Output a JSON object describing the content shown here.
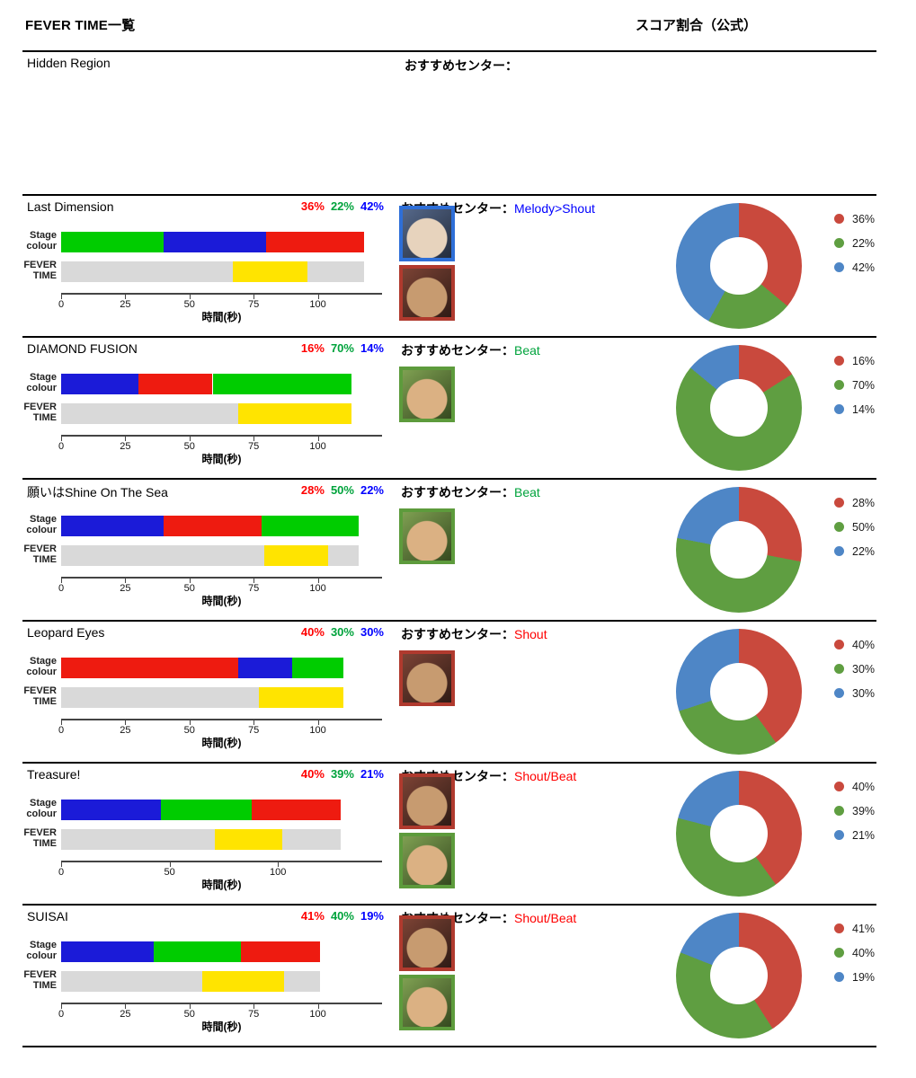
{
  "header": {
    "title": "FEVER TIME一覧",
    "right_title": "スコア割合（公式）"
  },
  "hidden": {
    "title": "Hidden Region"
  },
  "labels": {
    "recommend_prefix": "おすすめセンター：",
    "stage_colour": [
      "Stage",
      "colour"
    ],
    "fever_time": [
      "FEVER",
      "TIME"
    ],
    "axis_title": "時間(秒)"
  },
  "colors": {
    "bar_red": "#ee1b10",
    "bar_green": "#00cc00",
    "bar_blue": "#1b1bd8",
    "bar_yellow": "#ffe400",
    "bar_grey": "#d9d9d9",
    "donut_red": "#c9493d",
    "donut_green": "#5f9e41",
    "donut_blue": "#4e86c6",
    "text_red": "#ff0000",
    "text_green": "#00a33c",
    "text_blue": "#0000ff",
    "avatar_red": "#b03a2e",
    "avatar_green": "#5d9b3c",
    "avatar_blue": "#2e6fd8"
  },
  "chart_data": [
    {
      "type": "timeline+donut",
      "song": "Last Dimension",
      "recommended_center": {
        "label": "Melody>Shout",
        "color": "blue"
      },
      "axis": {
        "max": 125,
        "ticks": [
          0,
          25,
          50,
          75,
          100
        ]
      },
      "total_seconds": 118,
      "stage_colour_segments": [
        {
          "color": "green",
          "start": 0,
          "end": 40
        },
        {
          "color": "blue",
          "start": 40,
          "end": 80
        },
        {
          "color": "red",
          "start": 80,
          "end": 118
        }
      ],
      "fever_time": {
        "start": 67,
        "end": 96
      },
      "score_ratio": [
        {
          "color": "red",
          "value": 36,
          "label": "36%"
        },
        {
          "color": "green",
          "value": 22,
          "label": "22%"
        },
        {
          "color": "blue",
          "value": 42,
          "label": "42%"
        }
      ],
      "avatars": [
        {
          "name": "melody-center-avatar",
          "border": "blue",
          "bg1": "#55688a",
          "bg2": "#242c3c",
          "face": "#e7d3bd"
        },
        {
          "name": "shout-center-avatar",
          "border": "red",
          "bg1": "#7c4335",
          "bg2": "#2f1b15",
          "face": "#c79b70"
        }
      ]
    },
    {
      "type": "timeline+donut",
      "song": "DIAMOND FUSION",
      "recommended_center": {
        "label": "Beat",
        "color": "green"
      },
      "axis": {
        "max": 125,
        "ticks": [
          0,
          25,
          50,
          75,
          100
        ]
      },
      "total_seconds": 113,
      "stage_colour_segments": [
        {
          "color": "blue",
          "start": 0,
          "end": 30
        },
        {
          "color": "red",
          "start": 30,
          "end": 59
        },
        {
          "color": "green",
          "start": 59,
          "end": 113
        }
      ],
      "fever_time": {
        "start": 69,
        "end": 113
      },
      "score_ratio": [
        {
          "color": "red",
          "value": 16,
          "label": "16%"
        },
        {
          "color": "green",
          "value": 70,
          "label": "70%"
        },
        {
          "color": "blue",
          "value": 14,
          "label": "14%"
        }
      ],
      "avatars": [
        {
          "name": "beat-center-avatar",
          "border": "green",
          "bg1": "#7fa052",
          "bg2": "#35491f",
          "face": "#dbb183"
        }
      ]
    },
    {
      "type": "timeline+donut",
      "song": "願いはShine On The Sea",
      "recommended_center": {
        "label": "Beat",
        "color": "green"
      },
      "axis": {
        "max": 125,
        "ticks": [
          0,
          25,
          50,
          75,
          100
        ]
      },
      "total_seconds": 116,
      "stage_colour_segments": [
        {
          "color": "blue",
          "start": 0,
          "end": 40
        },
        {
          "color": "red",
          "start": 40,
          "end": 78
        },
        {
          "color": "green",
          "start": 78,
          "end": 116
        }
      ],
      "fever_time": {
        "start": 79,
        "end": 104
      },
      "score_ratio": [
        {
          "color": "red",
          "value": 28,
          "label": "28%"
        },
        {
          "color": "green",
          "value": 50,
          "label": "50%"
        },
        {
          "color": "blue",
          "value": 22,
          "label": "22%"
        }
      ],
      "avatars": [
        {
          "name": "beat-center-avatar",
          "border": "green",
          "bg1": "#7fa052",
          "bg2": "#35491f",
          "face": "#dbb183"
        }
      ]
    },
    {
      "type": "timeline+donut",
      "song": "Leopard Eyes",
      "recommended_center": {
        "label": "Shout",
        "color": "red"
      },
      "axis": {
        "max": 125,
        "ticks": [
          0,
          25,
          50,
          75,
          100
        ]
      },
      "total_seconds": 110,
      "stage_colour_segments": [
        {
          "color": "red",
          "start": 0,
          "end": 69
        },
        {
          "color": "blue",
          "start": 69,
          "end": 90
        },
        {
          "color": "green",
          "start": 90,
          "end": 110
        }
      ],
      "fever_time": {
        "start": 77,
        "end": 110
      },
      "score_ratio": [
        {
          "color": "red",
          "value": 40,
          "label": "40%"
        },
        {
          "color": "green",
          "value": 30,
          "label": "30%"
        },
        {
          "color": "blue",
          "value": 30,
          "label": "30%"
        }
      ],
      "avatars": [
        {
          "name": "shout-center-avatar",
          "border": "red",
          "bg1": "#7c4335",
          "bg2": "#2f1b15",
          "face": "#c79b70"
        }
      ]
    },
    {
      "type": "timeline+donut",
      "song": "Treasure!",
      "recommended_center": {
        "label": "Shout/Beat",
        "color": "red"
      },
      "axis": {
        "max": 148,
        "ticks": [
          0,
          50,
          100
        ]
      },
      "total_seconds": 129,
      "stage_colour_segments": [
        {
          "color": "blue",
          "start": 0,
          "end": 46
        },
        {
          "color": "green",
          "start": 46,
          "end": 88
        },
        {
          "color": "red",
          "start": 88,
          "end": 129
        }
      ],
      "fever_time": {
        "start": 71,
        "end": 102
      },
      "score_ratio": [
        {
          "color": "red",
          "value": 40,
          "label": "40%"
        },
        {
          "color": "green",
          "value": 39,
          "label": "39%"
        },
        {
          "color": "blue",
          "value": 21,
          "label": "21%"
        }
      ],
      "avatars": [
        {
          "name": "shout-center-avatar",
          "border": "red",
          "bg1": "#7c4335",
          "bg2": "#2f1b15",
          "face": "#c79b70"
        },
        {
          "name": "beat-center-avatar",
          "border": "green",
          "bg1": "#7fa052",
          "bg2": "#35491f",
          "face": "#dbb183"
        }
      ]
    },
    {
      "type": "timeline+donut",
      "song": "SUISAI",
      "recommended_center": {
        "label": "Shout/Beat",
        "color": "red"
      },
      "axis": {
        "max": 125,
        "ticks": [
          0,
          25,
          50,
          75,
          100
        ]
      },
      "total_seconds": 101,
      "stage_colour_segments": [
        {
          "color": "blue",
          "start": 0,
          "end": 36
        },
        {
          "color": "green",
          "start": 36,
          "end": 70
        },
        {
          "color": "red",
          "start": 70,
          "end": 101
        }
      ],
      "fever_time": {
        "start": 55,
        "end": 87
      },
      "score_ratio": [
        {
          "color": "red",
          "value": 41,
          "label": "41%"
        },
        {
          "color": "green",
          "value": 40,
          "label": "40%"
        },
        {
          "color": "blue",
          "value": 19,
          "label": "19%"
        }
      ],
      "avatars": [
        {
          "name": "shout-center-avatar",
          "border": "red",
          "bg1": "#7c4335",
          "bg2": "#2f1b15",
          "face": "#c79b70"
        },
        {
          "name": "beat-center-avatar",
          "border": "green",
          "bg1": "#7fa052",
          "bg2": "#35491f",
          "face": "#dbb183"
        }
      ]
    }
  ]
}
